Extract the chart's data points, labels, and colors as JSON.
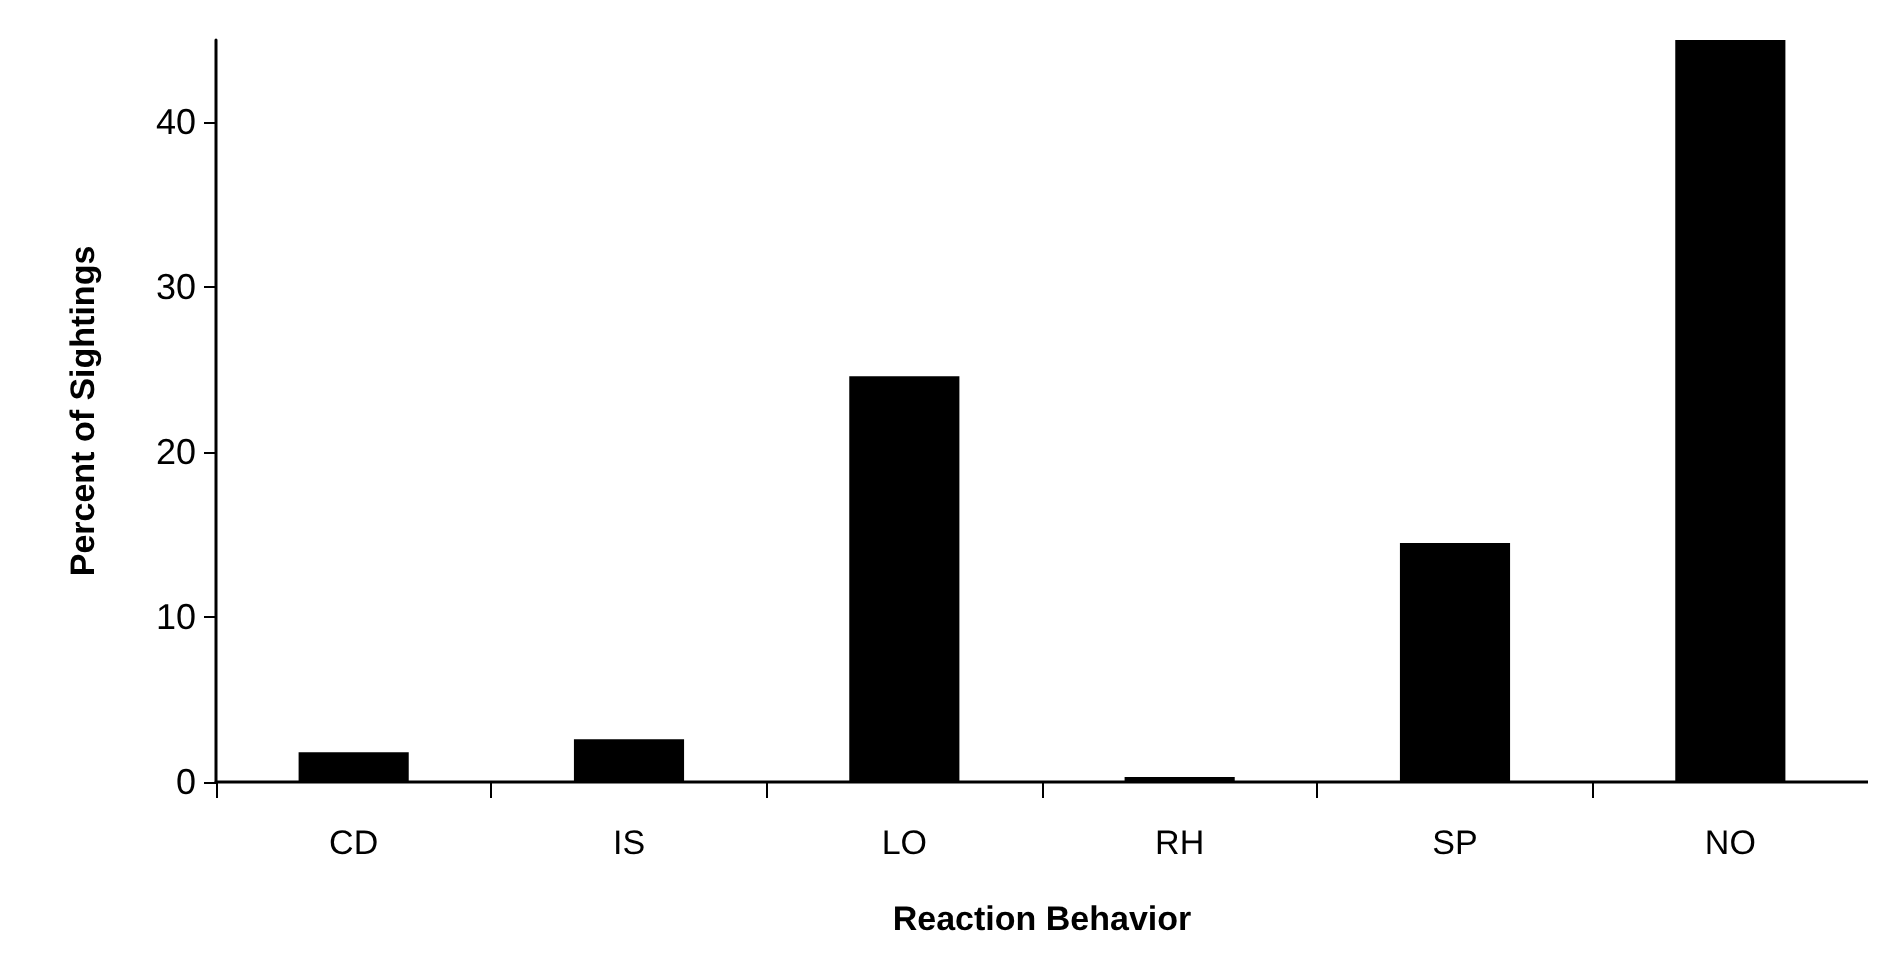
{
  "chart_data": {
    "type": "bar",
    "xlabel": "Reaction Behavior",
    "ylabel": "Percent of Sightings",
    "categories": [
      "CD",
      "IS",
      "LO",
      "RH",
      "SP",
      "NO"
    ],
    "values": [
      1.8,
      2.6,
      24.6,
      0.3,
      14.5,
      45
    ],
    "color": "#000000",
    "ylim": [
      0,
      45
    ],
    "yticks": [
      0,
      10,
      20,
      30,
      40
    ],
    "grid": false
  }
}
